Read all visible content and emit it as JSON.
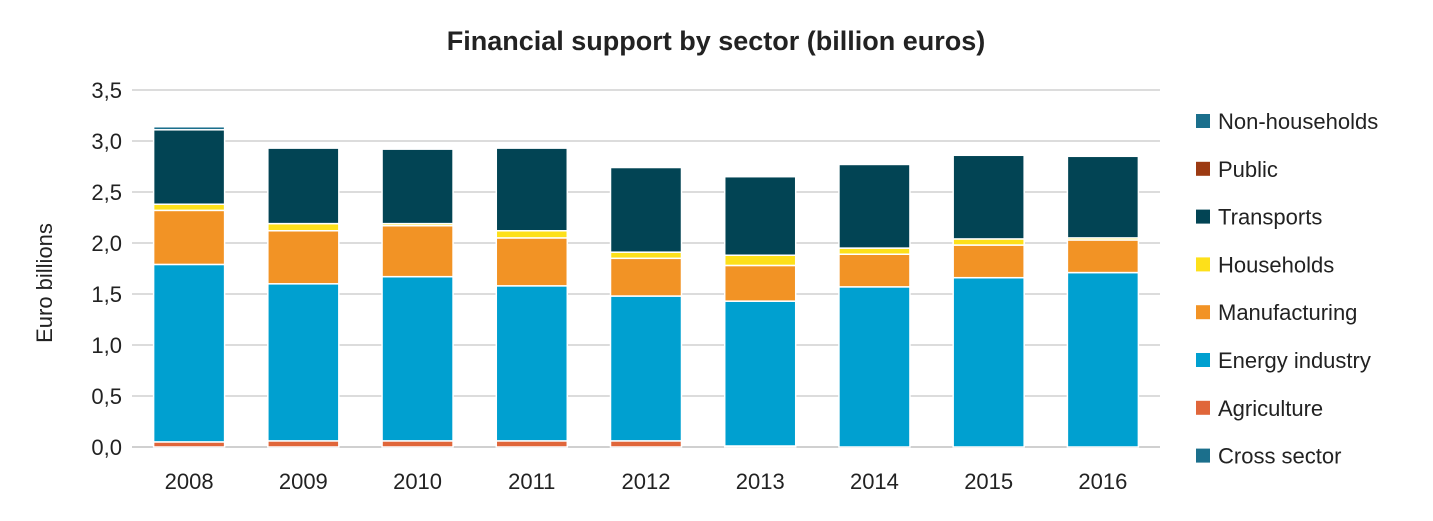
{
  "chart_data": {
    "type": "bar",
    "stacked": true,
    "title": "Financial support by sector (billion euros)",
    "xlabel": "",
    "ylabel": "Euro billions",
    "ylim": [
      0,
      3.5
    ],
    "yticks": [
      "0,0",
      "0,5",
      "1,0",
      "1,5",
      "2,0",
      "2,5",
      "3,0",
      "3,5"
    ],
    "ytick_values": [
      0,
      0.5,
      1,
      1.5,
      2,
      2.5,
      3,
      3.5
    ],
    "grid": true,
    "legend_position": "right",
    "categories": [
      "2008",
      "2009",
      "2010",
      "2011",
      "2012",
      "2013",
      "2014",
      "2015",
      "2016"
    ],
    "series": [
      {
        "name": "Cross sector",
        "color": "#1b6f8c",
        "values": [
          0,
          0,
          0,
          0,
          0,
          0,
          0,
          0,
          0
        ]
      },
      {
        "name": "Agriculture",
        "color": "#e0663a",
        "values": [
          0.05,
          0.06,
          0.06,
          0.06,
          0.06,
          0.01,
          0,
          0,
          0
        ]
      },
      {
        "name": "Energy industry",
        "color": "#00a0d0",
        "values": [
          1.74,
          1.54,
          1.61,
          1.52,
          1.42,
          1.42,
          1.57,
          1.66,
          1.71
        ]
      },
      {
        "name": "Manufacturing",
        "color": "#f29325",
        "values": [
          0.53,
          0.52,
          0.5,
          0.47,
          0.37,
          0.35,
          0.32,
          0.32,
          0.32
        ]
      },
      {
        "name": "Households",
        "color": "#fde01a",
        "values": [
          0.06,
          0.07,
          0.02,
          0.07,
          0.06,
          0.1,
          0.06,
          0.06,
          0.02
        ]
      },
      {
        "name": "Transports",
        "color": "#024454",
        "values": [
          0.73,
          0.74,
          0.73,
          0.81,
          0.83,
          0.77,
          0.82,
          0.82,
          0.8
        ]
      },
      {
        "name": "Public",
        "color": "#9c3a12",
        "values": [
          0,
          0,
          0,
          0,
          0,
          0,
          0,
          0,
          0
        ]
      },
      {
        "name": "Non-households",
        "color": "#1b6f8c",
        "values": [
          0.03,
          0,
          0,
          0,
          0,
          0,
          0,
          0,
          0
        ]
      }
    ]
  }
}
